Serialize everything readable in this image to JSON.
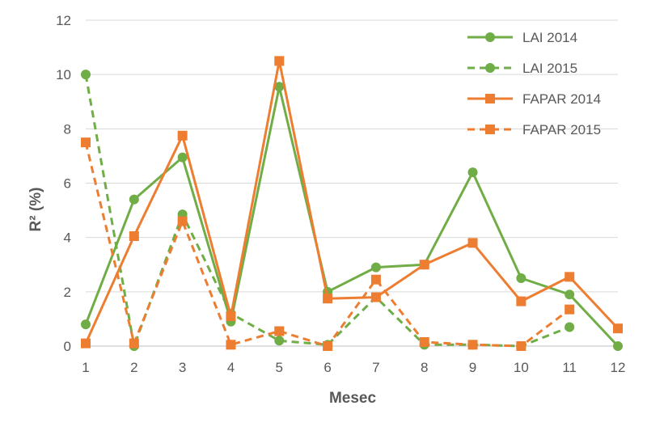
{
  "chart_data": {
    "type": "line",
    "title": "",
    "xlabel": "Mesec",
    "ylabel": "R² (%)",
    "categories": [
      "1",
      "2",
      "3",
      "4",
      "5",
      "6",
      "7",
      "8",
      "9",
      "10",
      "11",
      "12"
    ],
    "ylim": [
      0,
      12
    ],
    "yticks": [
      "0",
      "2",
      "4",
      "6",
      "8",
      "10",
      "12"
    ],
    "grid": true,
    "legend_position": "top-right",
    "series": [
      {
        "name": "LAI 2014",
        "color": "#70ad47",
        "marker": "circle",
        "dash": false,
        "values": [
          0.8,
          5.4,
          6.95,
          0.9,
          9.55,
          2.0,
          2.9,
          3.0,
          6.4,
          2.5,
          1.9,
          0.0
        ]
      },
      {
        "name": "LAI 2015",
        "color": "#70ad47",
        "marker": "circle",
        "dash": true,
        "values": [
          10.0,
          0.0,
          4.85,
          1.2,
          0.2,
          0.05,
          1.8,
          0.05,
          0.05,
          0.0,
          0.7,
          null
        ]
      },
      {
        "name": "FAPAR 2014",
        "color": "#ed7d31",
        "marker": "square",
        "dash": false,
        "values": [
          0.1,
          4.05,
          7.75,
          1.1,
          10.5,
          1.75,
          1.8,
          3.0,
          3.8,
          1.65,
          2.55,
          0.65
        ]
      },
      {
        "name": "FAPAR 2015",
        "color": "#ed7d31",
        "marker": "square",
        "dash": true,
        "values": [
          7.5,
          0.1,
          4.6,
          0.05,
          0.55,
          0.0,
          2.45,
          0.15,
          0.05,
          0.0,
          1.35,
          null
        ]
      }
    ]
  }
}
